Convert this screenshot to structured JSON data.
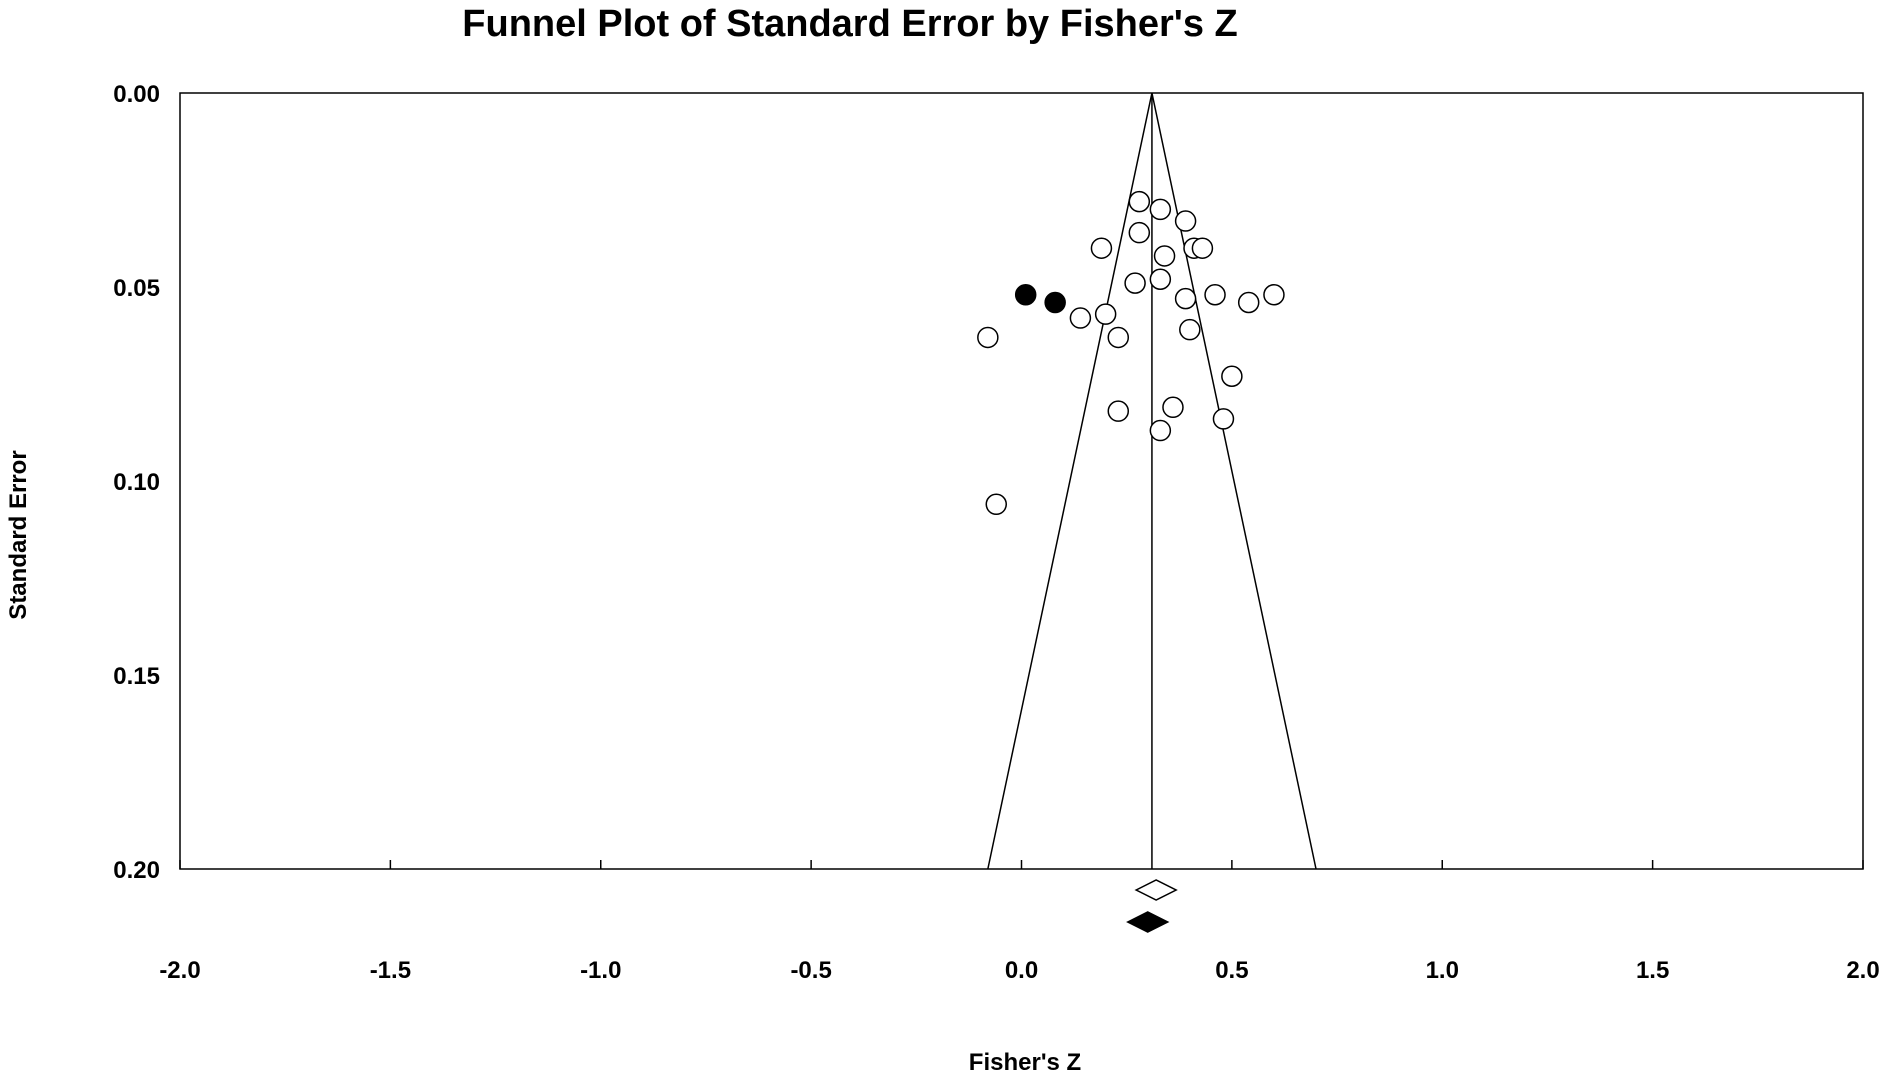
{
  "chart_data": {
    "type": "scatter",
    "title": "Funnel Plot of Standard Error by Fisher's Z",
    "xlabel": "Fisher's Z",
    "ylabel": "Standard Error",
    "xlim": [
      -2.0,
      2.0
    ],
    "ylim": [
      0.0,
      0.2
    ],
    "y_reversed": true,
    "x_tick_labels": [
      "-2.0",
      "-1.5",
      "-1.0",
      "-0.5",
      "0.0",
      "0.5",
      "1.0",
      "1.5",
      "2.0"
    ],
    "y_tick_labels": [
      "0.00",
      "0.05",
      "0.10",
      "0.15",
      "0.20"
    ],
    "grid": false,
    "legend": "none",
    "pooled_estimate": 0.31,
    "funnel_bottom_x": [
      -0.08,
      0.7
    ],
    "observed_studies": [
      {
        "x": 0.28,
        "y": 0.028
      },
      {
        "x": 0.33,
        "y": 0.03
      },
      {
        "x": 0.39,
        "y": 0.033
      },
      {
        "x": 0.28,
        "y": 0.036
      },
      {
        "x": 0.19,
        "y": 0.04
      },
      {
        "x": 0.41,
        "y": 0.04
      },
      {
        "x": 0.43,
        "y": 0.04
      },
      {
        "x": 0.34,
        "y": 0.042
      },
      {
        "x": 0.33,
        "y": 0.048
      },
      {
        "x": 0.27,
        "y": 0.049
      },
      {
        "x": 0.46,
        "y": 0.052
      },
      {
        "x": 0.6,
        "y": 0.052
      },
      {
        "x": 0.39,
        "y": 0.053
      },
      {
        "x": 0.54,
        "y": 0.054
      },
      {
        "x": 0.2,
        "y": 0.057
      },
      {
        "x": 0.14,
        "y": 0.058
      },
      {
        "x": 0.4,
        "y": 0.061
      },
      {
        "x": -0.08,
        "y": 0.063
      },
      {
        "x": 0.23,
        "y": 0.063
      },
      {
        "x": 0.5,
        "y": 0.073
      },
      {
        "x": 0.36,
        "y": 0.081
      },
      {
        "x": 0.23,
        "y": 0.082
      },
      {
        "x": 0.48,
        "y": 0.084
      },
      {
        "x": 0.33,
        "y": 0.087
      },
      {
        "x": -0.06,
        "y": 0.106
      }
    ],
    "imputed_studies": [
      {
        "x": 0.01,
        "y": 0.052
      },
      {
        "x": 0.08,
        "y": 0.054
      }
    ],
    "summary_diamonds": [
      {
        "kind": "observed",
        "x": 0.32,
        "filled": false
      },
      {
        "kind": "adjusted",
        "x": 0.3,
        "filled": true
      }
    ],
    "colors": {
      "line": "#000000",
      "open_marker": "#ffffff",
      "filled_marker": "#000000"
    }
  }
}
